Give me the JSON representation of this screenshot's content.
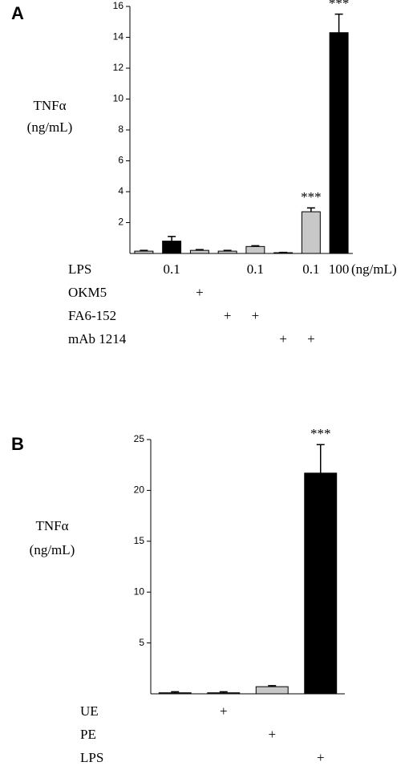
{
  "chart_data": [
    {
      "type": "bar",
      "panel": "A",
      "ylabel": [
        "TNFα",
        "(ng/mL)"
      ],
      "values": [
        0.15,
        0.8,
        0.2,
        0.15,
        0.45,
        0.05,
        2.7,
        14.3
      ],
      "errors": [
        0.05,
        0.3,
        0.05,
        0.05,
        0.05,
        0.02,
        0.25,
        1.2
      ],
      "colors": [
        "#c8c8c8",
        "#000000",
        "#c8c8c8",
        "#c8c8c8",
        "#c8c8c8",
        "#c8c8c8",
        "#c8c8c8",
        "#000000"
      ],
      "value_annotations": [
        null,
        null,
        null,
        null,
        null,
        null,
        "***",
        "***"
      ],
      "ylim": [
        0,
        16
      ],
      "yticks": [
        2,
        4,
        6,
        8,
        10,
        12,
        14,
        16
      ],
      "rows": [
        {
          "label": "LPS",
          "cells": [
            null,
            "0.1",
            null,
            null,
            "0.1",
            null,
            "0.1",
            "100"
          ]
        },
        {
          "label": "OKM5",
          "cells": [
            null,
            null,
            "+",
            null,
            null,
            null,
            null,
            null
          ]
        },
        {
          "label": "FA6-152",
          "cells": [
            null,
            null,
            null,
            "+",
            "+",
            null,
            null,
            null
          ]
        },
        {
          "label": "mAb 1214",
          "cells": [
            null,
            null,
            null,
            null,
            null,
            "+",
            "+",
            null
          ]
        }
      ],
      "rows_unit": "(ng/mL)"
    },
    {
      "type": "bar",
      "panel": "B",
      "ylabel": [
        "TNFα",
        "(ng/mL)"
      ],
      "values": [
        0.1,
        0.1,
        0.7,
        21.7
      ],
      "errors": [
        0.1,
        0.1,
        0.1,
        2.8
      ],
      "colors": [
        "#333333",
        "#333333",
        "#c8c8c8",
        "#000000"
      ],
      "value_annotations": [
        null,
        null,
        null,
        "***"
      ],
      "ylim": [
        0,
        25
      ],
      "yticks": [
        5,
        10,
        15,
        20,
        25
      ],
      "rows": [
        {
          "label": "UE",
          "cells": [
            null,
            "+",
            null,
            null
          ]
        },
        {
          "label": "PE",
          "cells": [
            null,
            null,
            "+",
            null
          ]
        },
        {
          "label": "LPS",
          "cells": [
            null,
            null,
            null,
            "+"
          ]
        }
      ]
    }
  ]
}
